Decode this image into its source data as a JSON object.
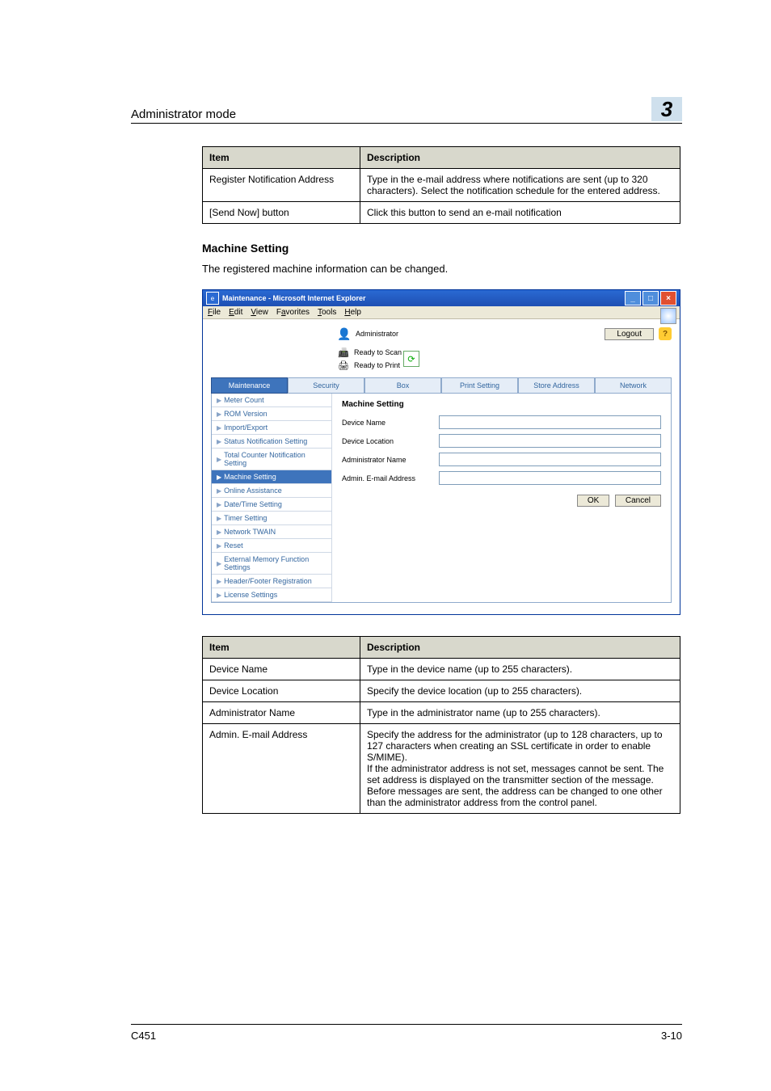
{
  "header": {
    "title": "Administrator mode",
    "chapter": "3"
  },
  "table1": {
    "headers": [
      "Item",
      "Description"
    ],
    "rows": [
      [
        "Register Notification Address",
        "Type in the e-mail address where notifications are sent (up to 320 characters). Select the notification schedule for the entered address."
      ],
      [
        "[Send Now] button",
        "Click this button to send an e-mail notification"
      ]
    ]
  },
  "section": {
    "heading": "Machine Setting",
    "body": "The registered machine information can be changed."
  },
  "screenshot": {
    "windowTitle": "Maintenance - Microsoft Internet Explorer",
    "menus": [
      "File",
      "Edit",
      "View",
      "Favorites",
      "Tools",
      "Help"
    ],
    "administrator": "Administrator",
    "logout": "Logout",
    "ready1": "Ready to Scan",
    "ready2": "Ready to Print",
    "tabs": [
      "Maintenance",
      "Security",
      "Box",
      "Print Setting",
      "Store Address",
      "Network"
    ],
    "activeTab": 0,
    "sideItems": [
      "Meter Count",
      "ROM Version",
      "Import/Export",
      "Status Notification Setting",
      "Total Counter Notification Setting",
      "Machine Setting",
      "Online Assistance",
      "Date/Time Setting",
      "Timer Setting",
      "Network TWAIN",
      "Reset",
      "External Memory Function Settings",
      "Header/Footer Registration",
      "License Settings"
    ],
    "selectedSide": 5,
    "mainTitle": "Machine Setting",
    "fields": [
      "Device Name",
      "Device Location",
      "Administrator Name",
      "Admin. E-mail Address"
    ],
    "ok": "OK",
    "cancel": "Cancel"
  },
  "table2": {
    "headers": [
      "Item",
      "Description"
    ],
    "rows": [
      [
        "Device Name",
        "Type in the device name (up to 255 characters)."
      ],
      [
        "Device Location",
        "Specify the device location (up to 255 characters)."
      ],
      [
        "Administrator Name",
        "Type in the administrator name (up to 255 characters)."
      ],
      [
        "Admin. E-mail Address",
        "Specify the address for the administrator (up to 128 characters, up to 127 characters when creating an SSL certificate in order to enable S/MIME).\nIf the administrator address is not set, messages cannot be sent. The set address is displayed on the transmitter section of the message. Before messages are sent, the address can be changed to one other than the administrator address from the control panel."
      ]
    ]
  },
  "footer": {
    "left": "C451",
    "right": "3-10"
  },
  "colors": {
    "chapterBg": "#cfe0ed",
    "tableHeaderBg": "#d8d8cc",
    "tabActive": "#3e74bc",
    "tabInactive": "#e5edf7",
    "sideText": "#33669f"
  }
}
